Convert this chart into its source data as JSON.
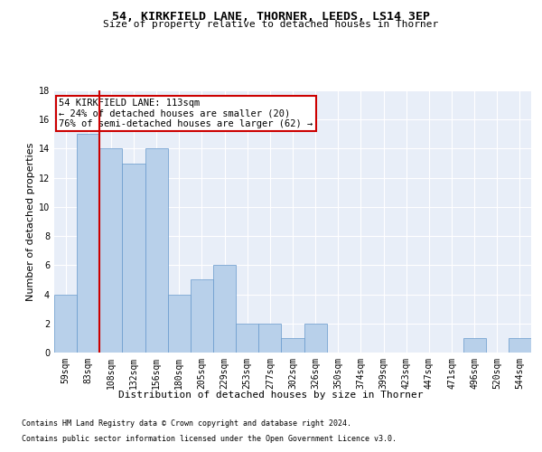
{
  "title1": "54, KIRKFIELD LANE, THORNER, LEEDS, LS14 3EP",
  "title2": "Size of property relative to detached houses in Thorner",
  "xlabel": "Distribution of detached houses by size in Thorner",
  "ylabel": "Number of detached properties",
  "categories": [
    "59sqm",
    "83sqm",
    "108sqm",
    "132sqm",
    "156sqm",
    "180sqm",
    "205sqm",
    "229sqm",
    "253sqm",
    "277sqm",
    "302sqm",
    "326sqm",
    "350sqm",
    "374sqm",
    "399sqm",
    "423sqm",
    "447sqm",
    "471sqm",
    "496sqm",
    "520sqm",
    "544sqm"
  ],
  "values": [
    4,
    15,
    14,
    13,
    14,
    4,
    5,
    6,
    2,
    2,
    1,
    2,
    0,
    0,
    0,
    0,
    0,
    0,
    1,
    0,
    1
  ],
  "bar_color": "#b8d0ea",
  "bar_edgecolor": "#6699cc",
  "vline_color": "#cc0000",
  "vline_x_idx": 1.5,
  "annotation_line1": "54 KIRKFIELD LANE: 113sqm",
  "annotation_line2": "← 24% of detached houses are smaller (20)",
  "annotation_line3": "76% of semi-detached houses are larger (62) →",
  "annotation_box_edgecolor": "#cc0000",
  "ylim": [
    0,
    18
  ],
  "yticks": [
    0,
    2,
    4,
    6,
    8,
    10,
    12,
    14,
    16,
    18
  ],
  "footnote1": "Contains HM Land Registry data © Crown copyright and database right 2024.",
  "footnote2": "Contains public sector information licensed under the Open Government Licence v3.0.",
  "background_color": "#e8eef8",
  "grid_color": "#ffffff",
  "fig_background": "#ffffff",
  "title1_fontsize": 9.5,
  "title2_fontsize": 8,
  "ylabel_fontsize": 8,
  "xlabel_fontsize": 8,
  "tick_fontsize": 7,
  "annot_fontsize": 7.5,
  "footnote_fontsize": 6
}
